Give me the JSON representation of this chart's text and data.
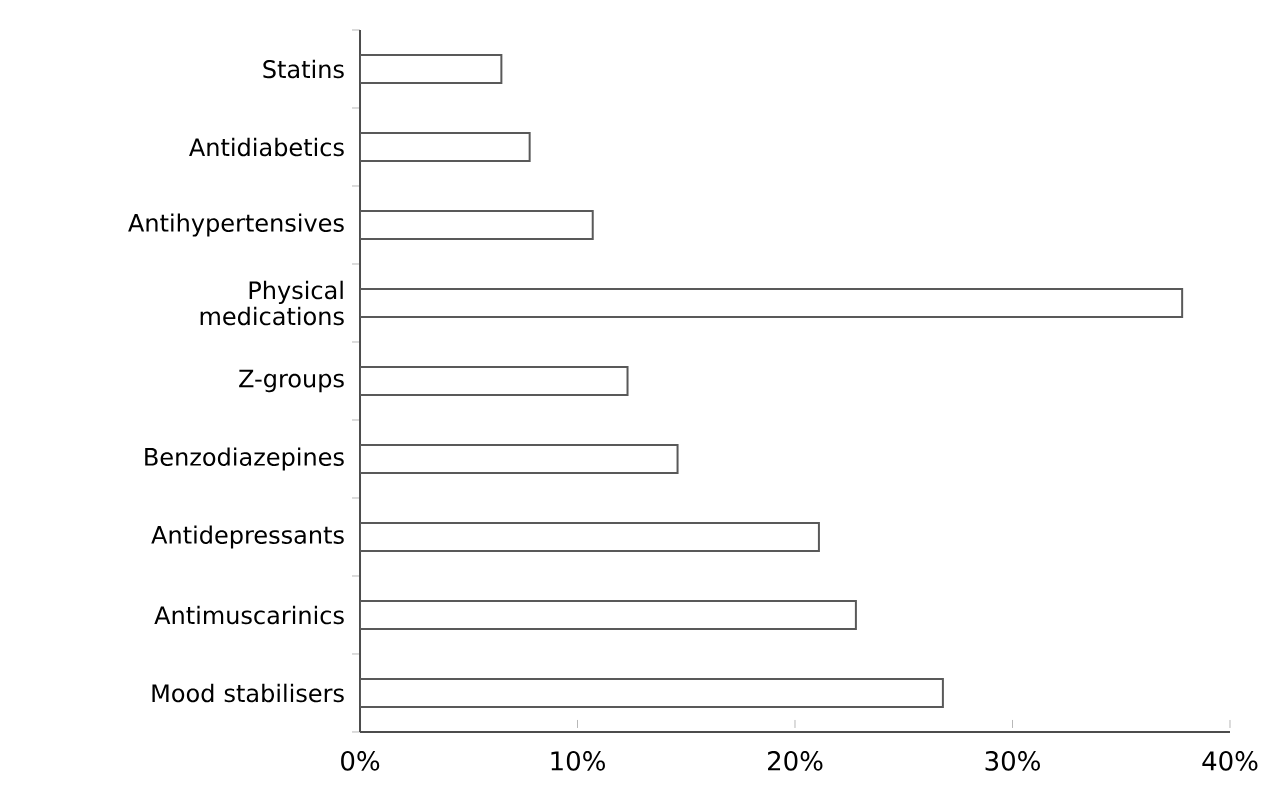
{
  "chart_data": {
    "type": "bar",
    "orientation": "horizontal",
    "categories": [
      "Statins",
      "Antidiabetics",
      "Antihypertensives",
      "Physical medications",
      "Z-groups",
      "Benzodiazepines",
      "Antidepressants",
      "Antimuscarinics",
      "Mood stabilisers"
    ],
    "values": [
      6.5,
      7.8,
      10.7,
      37.8,
      12.3,
      14.6,
      21.1,
      22.8,
      26.8
    ],
    "color": "#ffffff",
    "xlim": [
      0,
      40
    ],
    "xticks": [
      {
        "value": 0,
        "label": "0%"
      },
      {
        "value": 10,
        "label": "10%"
      },
      {
        "value": 20,
        "label": "20%"
      },
      {
        "value": 30,
        "label": "30%"
      },
      {
        "value": 40,
        "label": "40%"
      }
    ],
    "grid": false
  }
}
